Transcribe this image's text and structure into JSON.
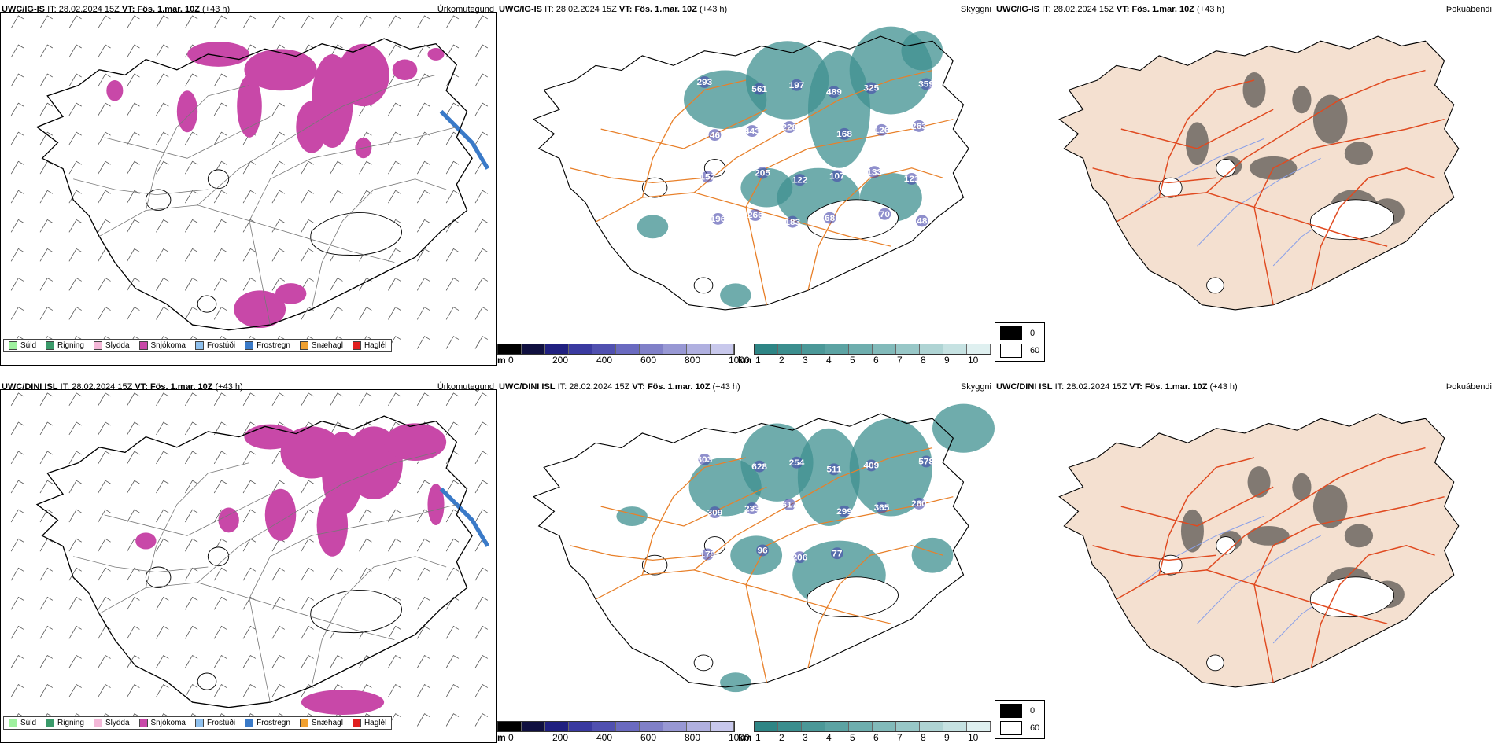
{
  "rows": [
    {
      "model": "UWC/IG-IS",
      "it_label": "IT:",
      "it_value": "28.02.2024 15Z",
      "vt_label": "VT:",
      "vt_value": "Fös. 1.mar. 10Z",
      "lead": "(+43 h)",
      "cloud_labels": [
        "293",
        "561",
        "197",
        "489",
        "325",
        "359",
        "46",
        "443",
        "228",
        "168",
        "126",
        "263",
        "152",
        "205",
        "122",
        "107",
        "133",
        "121",
        "196",
        "266",
        "183",
        "68",
        "70",
        "48"
      ]
    },
    {
      "model": "UWC/DINI ISL",
      "it_label": "IT:",
      "it_value": "28.02.2024 15Z",
      "vt_label": "VT:",
      "vt_value": "Fös. 1.mar. 10Z",
      "lead": "(+43 h)",
      "cloud_labels": [
        "303",
        "628",
        "254",
        "511",
        "409",
        "578",
        "309",
        "233",
        "617",
        "299",
        "365",
        "260",
        "179",
        "96",
        "206",
        "77"
      ]
    }
  ],
  "panel_vars": {
    "precip": "Úrkomutegund",
    "visibility": "Skyggni",
    "fog": "Þokuábendi"
  },
  "precip_legend": [
    {
      "label": "Súld",
      "color": "#9ef09e"
    },
    {
      "label": "Rigning",
      "color": "#3a9a6a"
    },
    {
      "label": "Slydda",
      "color": "#f4b8d8"
    },
    {
      "label": "Snjókoma",
      "color": "#c848a8"
    },
    {
      "label": "Frostúði",
      "color": "#8ec0ee"
    },
    {
      "label": "Frostregn",
      "color": "#3a7ac8"
    },
    {
      "label": "Snæhagl",
      "color": "#f0a030"
    },
    {
      "label": "Haglél",
      "color": "#e02020"
    }
  ],
  "cloudbase_bar": {
    "unit": "m",
    "ticks": [
      "0",
      "200",
      "400",
      "600",
      "800",
      "1000"
    ],
    "colors": [
      "#000000",
      "#101040",
      "#202080",
      "#3a3aa0",
      "#5050b0",
      "#6a6ac0",
      "#8080c8",
      "#9898d4",
      "#b0b0e0",
      "#c8c8ec"
    ]
  },
  "visibility_bar": {
    "unit": "km",
    "ticks": [
      "1",
      "2",
      "3",
      "4",
      "5",
      "6",
      "7",
      "8",
      "9",
      "10"
    ],
    "colors": [
      "#2e8585",
      "#3b8e8e",
      "#4b9898",
      "#5ca3a3",
      "#6eaeae",
      "#82baba",
      "#98c7c7",
      "#afd4d4",
      "#c6e2e2",
      "#dff0f0"
    ]
  },
  "fog_legend": [
    {
      "label": "0",
      "color": "#000000"
    },
    {
      "label": "60",
      "color": "#ffffff"
    }
  ],
  "colors": {
    "snow": "#c848a8",
    "freezing_rain": "#3a7ac8",
    "visibility_fill": "#3f9090",
    "roads": "#e8802a",
    "land_fog": "#f4e0d0",
    "fog_roads": "#e04a20",
    "rivers": "#8aa0e8"
  }
}
